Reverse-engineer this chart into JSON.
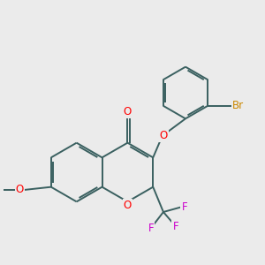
{
  "bg_color": "#ebebeb",
  "bond_color": "#3a6060",
  "bond_width": 1.4,
  "atom_colors": {
    "O": "#ff0000",
    "F": "#cc00cc",
    "Br": "#cc8800",
    "C": "#3a6060"
  },
  "font_size": 8.5,
  "sub_font_size": 6.5
}
